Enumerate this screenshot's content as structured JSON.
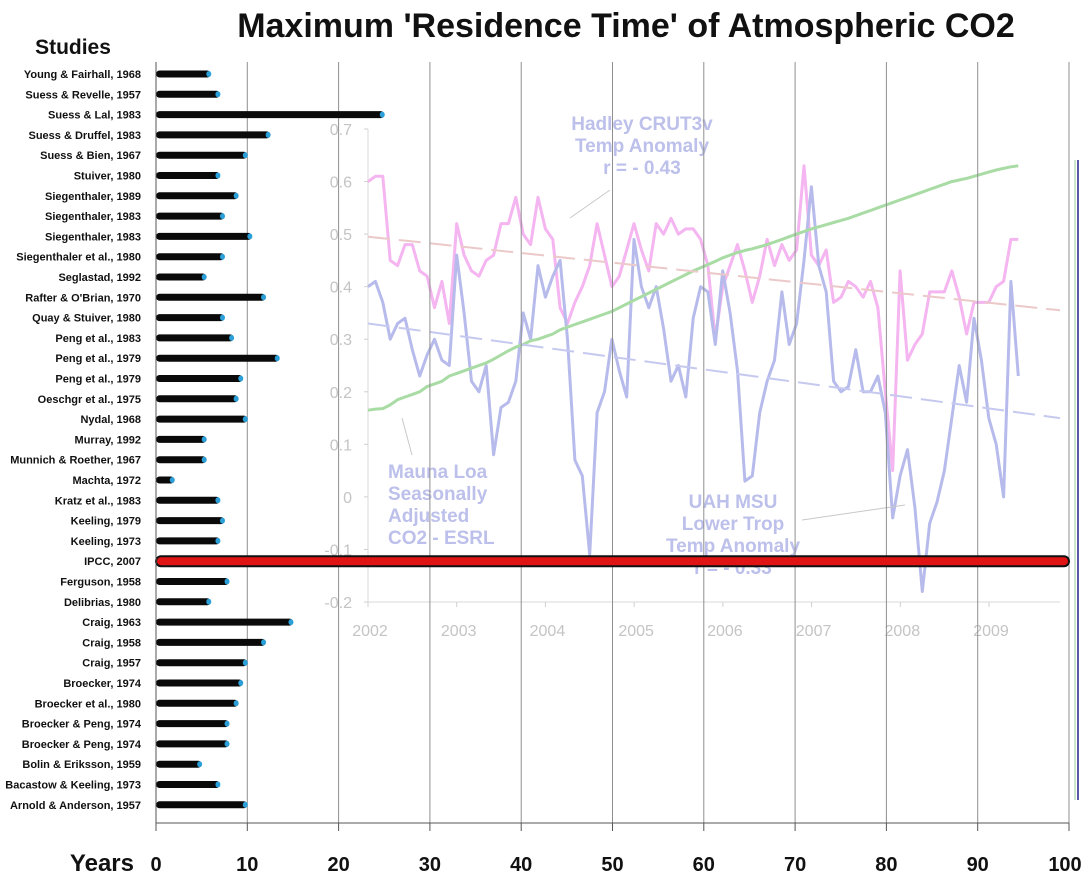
{
  "chart_data": [
    {
      "type": "bar",
      "orientation": "horizontal",
      "title": "Maximum 'Residence Time' of Atmospheric CO2",
      "category_header": "Studies",
      "xlabel": "Years",
      "xlim": [
        0,
        100
      ],
      "xticks": [
        0,
        10,
        20,
        30,
        40,
        50,
        60,
        70,
        80,
        90,
        100
      ],
      "grid": true,
      "bar_color": "#0a0a0a",
      "highlight_color": "#e01414",
      "highlight_category": "IPCC, 2007",
      "categories": [
        "Young & Fairhall, 1968",
        "Suess & Revelle, 1957",
        "Suess & Lal, 1983",
        "Suess & Druffel, 1983",
        "Suess & Bien, 1967",
        "Stuiver, 1980",
        "Siegenthaler, 1989",
        "Siegenthaler, 1983",
        "Siegenthaler, 1983",
        "Siegenthaler et al., 1980",
        "Seglastad, 1992",
        "Rafter & O'Brian, 1970",
        "Quay & Stuiver, 1980",
        "Peng et al., 1983",
        "Peng et al., 1979",
        "Peng et al., 1979",
        "Oeschgr et al., 1975",
        "Nydal, 1968",
        "Murray, 1992",
        "Munnich & Roether, 1967",
        "Machta, 1972",
        "Kratz et al., 1983",
        "Keeling, 1979",
        "Keeling, 1973",
        "IPCC, 2007",
        "Ferguson, 1958",
        "Delibrias, 1980",
        "Craig, 1963",
        "Craig, 1958",
        "Craig, 1957",
        "Broecker, 1974",
        "Broecker et al., 1980",
        "Broecker & Peng, 1974",
        "Broecker & Peng, 1974",
        "Bolin & Eriksson, 1959",
        "Bacastow & Keeling, 1973",
        "Arnold & Anderson, 1957"
      ],
      "values": [
        6,
        7,
        25,
        12.5,
        10,
        7,
        9,
        7.5,
        10.5,
        7.5,
        5.5,
        12,
        7.5,
        8.5,
        13.5,
        9.5,
        9,
        10,
        5.5,
        5.5,
        2,
        7,
        7.5,
        7,
        100,
        8,
        6,
        15,
        12,
        10,
        9.5,
        9,
        8,
        8,
        5,
        7,
        10
      ]
    },
    {
      "type": "line",
      "background_inset": true,
      "ylim": [
        -0.2,
        0.7
      ],
      "yticks": [
        "0.7",
        "0.6",
        "0.5",
        "0.4",
        "0.3",
        "0.2",
        "0.1",
        "0",
        "-0.1",
        "-0.2"
      ],
      "xticks": [
        "2002",
        "2003",
        "2004",
        "2005",
        "2006",
        "2007",
        "2008",
        "2009"
      ],
      "x_range": [
        2002,
        2009.8
      ],
      "annotations": [
        {
          "lines": [
            "Hadley CRUT3v",
            "Temp Anomaly",
            "r = - 0.43"
          ],
          "color": "#bcc0ea"
        },
        {
          "lines": [
            "Mauna Loa",
            "Seasonally",
            "Adjusted",
            "CO2 - ESRL"
          ],
          "color": "#bcc0ea"
        },
        {
          "lines": [
            "UAH MSU",
            "Lower Trop",
            "Temp Anomaly",
            "r = - 0.33"
          ],
          "color": "#bcc0ea"
        }
      ],
      "series": [
        {
          "color": "#f4b5f0",
          "x_start": 2002.0,
          "x_step": 0.0833,
          "values": [
            0.6,
            0.61,
            0.61,
            0.45,
            0.44,
            0.48,
            0.48,
            0.43,
            0.42,
            0.36,
            0.41,
            0.33,
            0.52,
            0.46,
            0.43,
            0.42,
            0.45,
            0.46,
            0.52,
            0.52,
            0.57,
            0.5,
            0.48,
            0.57,
            0.51,
            0.49,
            0.36,
            0.33,
            0.37,
            0.4,
            0.44,
            0.52,
            0.46,
            0.4,
            0.42,
            0.47,
            0.52,
            0.47,
            0.43,
            0.52,
            0.5,
            0.53,
            0.5,
            0.51,
            0.51,
            0.49,
            0.44,
            0.3,
            0.4,
            0.44,
            0.48,
            0.43,
            0.37,
            0.42,
            0.49,
            0.44,
            0.48,
            0.45,
            0.47,
            0.63,
            0.46,
            0.44,
            0.47,
            0.37,
            0.38,
            0.41,
            0.4,
            0.38,
            0.41,
            0.36,
            0.2,
            0.05,
            0.43,
            0.26,
            0.29,
            0.31,
            0.39,
            0.39,
            0.39,
            0.43,
            0.38,
            0.31,
            0.37,
            0.37,
            0.37,
            0.4,
            0.41,
            0.49,
            0.49
          ]
        },
        {
          "color": "#b7bbeb",
          "x_start": 2002.0,
          "x_step": 0.0833,
          "values": [
            0.4,
            0.41,
            0.37,
            0.3,
            0.33,
            0.34,
            0.28,
            0.23,
            0.27,
            0.3,
            0.26,
            0.25,
            0.46,
            0.35,
            0.22,
            0.2,
            0.25,
            0.08,
            0.17,
            0.18,
            0.22,
            0.35,
            0.3,
            0.44,
            0.38,
            0.42,
            0.45,
            0.3,
            0.07,
            0.04,
            -0.11,
            0.16,
            0.2,
            0.3,
            0.24,
            0.19,
            0.49,
            0.4,
            0.36,
            0.4,
            0.32,
            0.22,
            0.25,
            0.19,
            0.34,
            0.4,
            0.39,
            0.29,
            0.43,
            0.35,
            0.24,
            0.03,
            0.04,
            0.16,
            0.22,
            0.26,
            0.39,
            0.29,
            0.33,
            0.45,
            0.59,
            0.44,
            0.39,
            0.22,
            0.2,
            0.21,
            0.28,
            0.2,
            0.2,
            0.23,
            0.16,
            -0.04,
            0.04,
            0.09,
            -0.02,
            -0.18,
            -0.05,
            -0.01,
            0.05,
            0.15,
            0.25,
            0.18,
            0.34,
            0.26,
            0.15,
            0.1,
            0.0,
            0.41,
            0.23
          ]
        },
        {
          "color": "#a8dca4",
          "x_start": 2002.0,
          "x_step": 0.0833,
          "values": [
            0.165,
            0.167,
            0.168,
            0.175,
            0.185,
            0.19,
            0.195,
            0.2,
            0.21,
            0.215,
            0.22,
            0.23,
            0.235,
            0.24,
            0.245,
            0.25,
            0.255,
            0.262,
            0.27,
            0.278,
            0.285,
            0.29,
            0.297,
            0.3,
            0.305,
            0.31,
            0.318,
            0.323,
            0.328,
            0.333,
            0.338,
            0.343,
            0.348,
            0.353,
            0.36,
            0.367,
            0.374,
            0.381,
            0.388,
            0.395,
            0.402,
            0.409,
            0.416,
            0.423,
            0.43,
            0.436,
            0.442,
            0.448,
            0.455,
            0.46,
            0.465,
            0.469,
            0.472,
            0.476,
            0.48,
            0.485,
            0.49,
            0.495,
            0.5,
            0.505,
            0.51,
            0.514,
            0.518,
            0.522,
            0.526,
            0.53,
            0.535,
            0.54,
            0.545,
            0.55,
            0.555,
            0.56,
            0.565,
            0.57,
            0.575,
            0.58,
            0.585,
            0.59,
            0.595,
            0.6,
            0.603,
            0.606,
            0.61,
            0.614,
            0.618,
            0.622,
            0.625,
            0.628,
            0.63
          ]
        },
        {
          "color": "#ecc9c9",
          "dashed": true,
          "trend": true,
          "x": [
            2002.0,
            2009.8
          ],
          "values": [
            0.495,
            0.355
          ]
        },
        {
          "color": "#c6c9ef",
          "dashed": true,
          "trend": true,
          "x": [
            2002.0,
            2009.8
          ],
          "values": [
            0.33,
            0.15
          ]
        }
      ]
    }
  ]
}
